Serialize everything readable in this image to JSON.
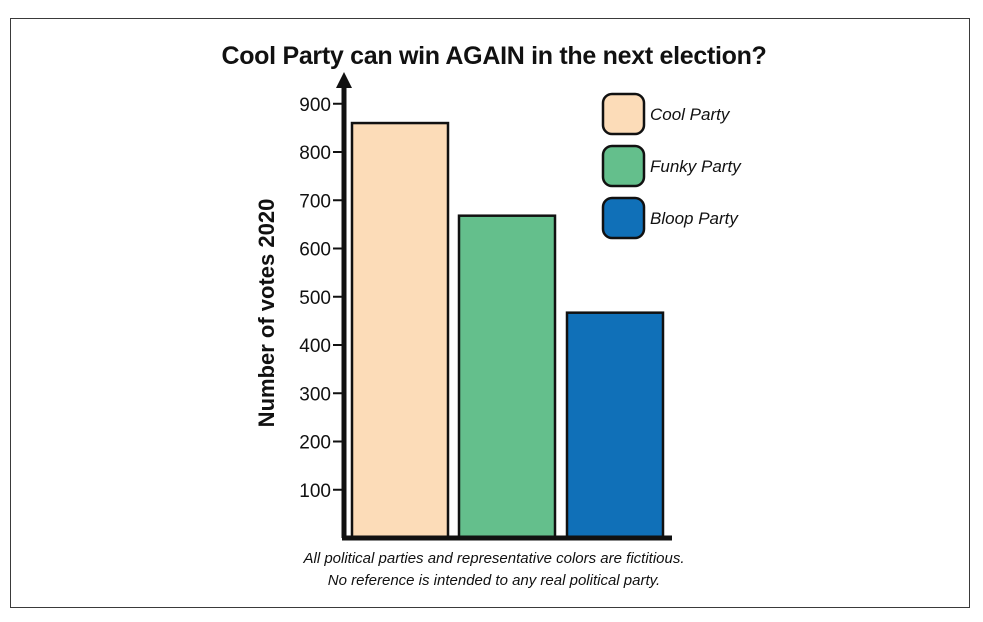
{
  "chart_data": {
    "type": "bar",
    "title": "Cool Party can win AGAIN in the next election?",
    "xlabel": "",
    "ylabel": "Number of votes 2020",
    "categories": [
      "Cool Party",
      "Funky Party",
      "Bloop Party"
    ],
    "values": [
      860,
      668,
      467
    ],
    "colors": [
      "#fcdcb8",
      "#64bf8c",
      "#1070b8"
    ],
    "yticks": [
      100,
      200,
      300,
      400,
      500,
      600,
      700,
      800,
      900
    ],
    "ylim": [
      0,
      970
    ],
    "grid": false,
    "legend": {
      "placement": "top-right",
      "items": [
        "Cool Party",
        "Funky Party",
        "Bloop Party"
      ]
    },
    "footnote": [
      "All political parties and representative colors are fictitious.",
      "No reference is intended to any real political party."
    ]
  }
}
